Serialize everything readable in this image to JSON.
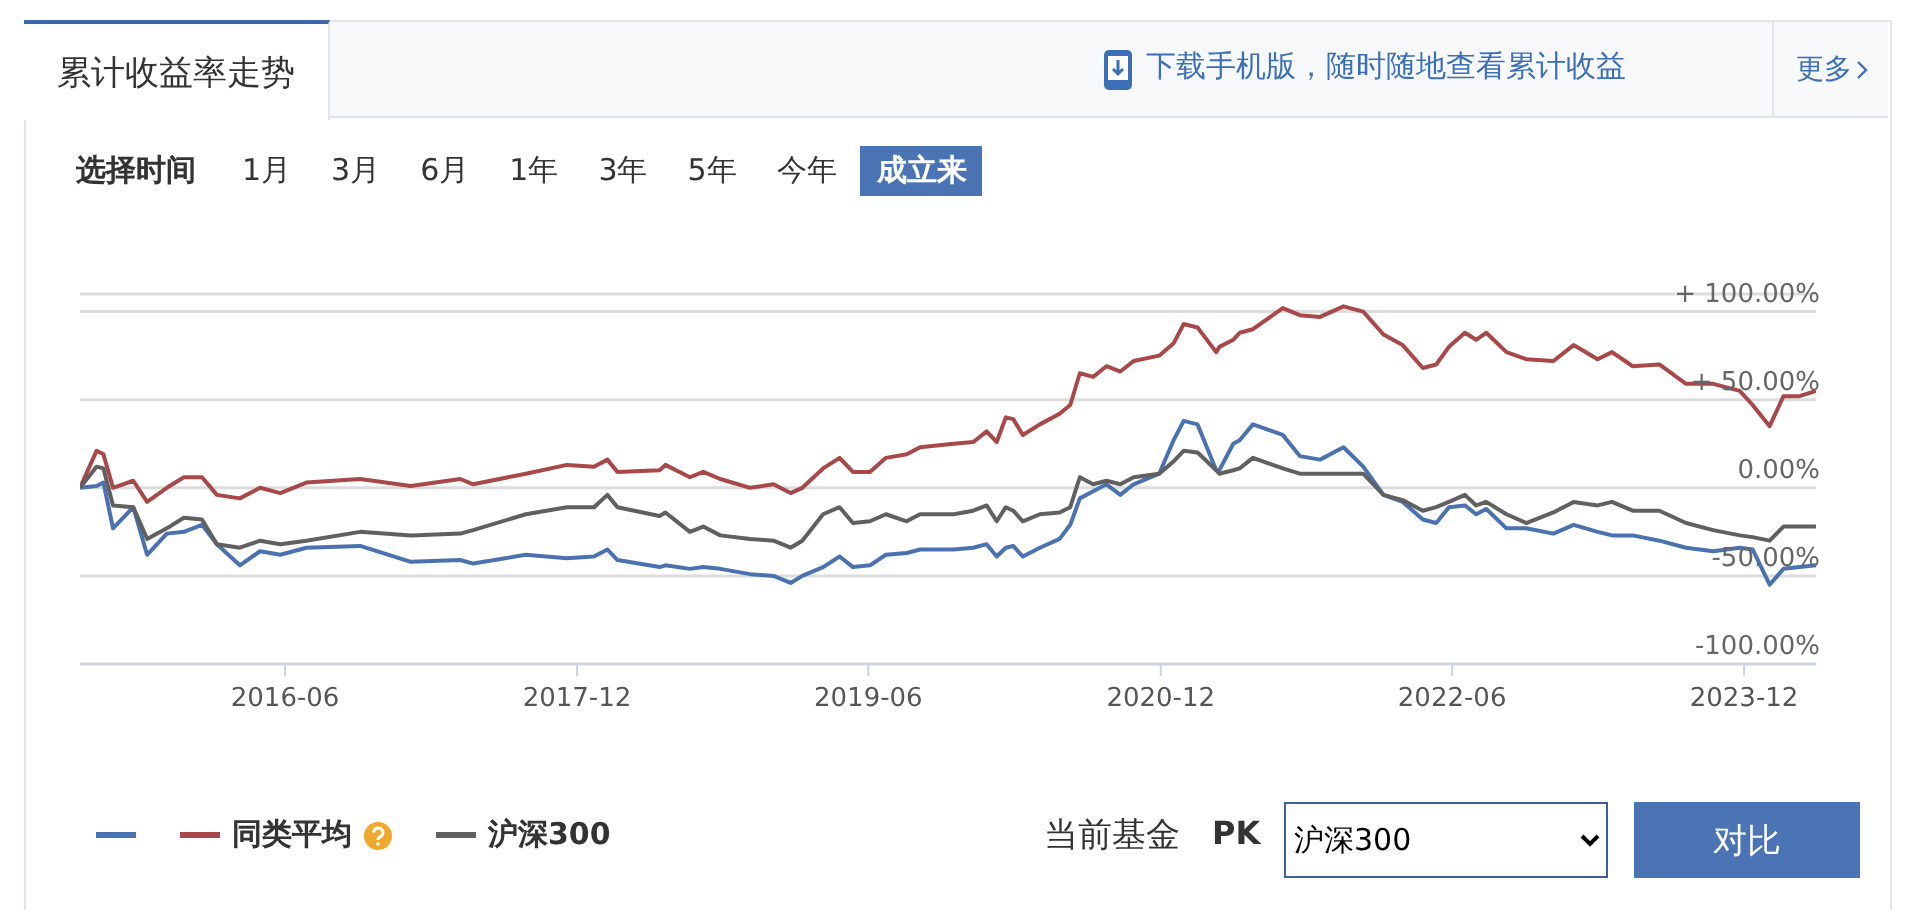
{
  "chart_data": {
    "type": "line",
    "title": "累计收益率走势",
    "annotations": [
      "下载手机版，随时随地查看累计收益",
      "更多",
      "选择时间",
      "1月",
      "3月",
      "6月",
      "1年",
      "3年",
      "5年",
      "今年",
      "成立来",
      "当前基金",
      "PK",
      "沪深300",
      "对比"
    ],
    "x": [
      "2015-05-13",
      "2015-06-13",
      "2015-06-26",
      "2015-07-14",
      "2015-08-21",
      "2015-09-16",
      "2015-10-23",
      "2015-11-24",
      "2015-12-28",
      "2016-01-25",
      "2016-03-08",
      "2016-04-15",
      "2016-05-23",
      "2016-07-11",
      "2016-10-20",
      "2017-01-23",
      "2017-04-26",
      "2017-05-20",
      "2017-08-27",
      "2017-11-12",
      "2018-01-02",
      "2018-01-27",
      "2018-02-15",
      "2018-05-05",
      "2018-05-16",
      "2018-07-01",
      "2018-07-26",
      "2018-08-27",
      "2018-10-22",
      "2018-12-05",
      "2019-01-06",
      "2019-01-28",
      "2019-03-08",
      "2019-04-08",
      "2019-05-03",
      "2019-06-04",
      "2019-07-04",
      "2019-08-12",
      "2019-09-06",
      "2019-11-08",
      "2019-12-15",
      "2020-01-09",
      "2020-01-28",
      "2020-02-14",
      "2020-02-28",
      "2020-03-17",
      "2020-04-18",
      "2020-05-25",
      "2020-06-14",
      "2020-07-02",
      "2020-07-27",
      "2020-08-21",
      "2020-09-16",
      "2020-10-11",
      "2020-11-28",
      "2020-12-25",
      "2021-01-13",
      "2021-02-08",
      "2021-03-15",
      "2021-03-21",
      "2021-04-16",
      "2021-04-28",
      "2021-05-23",
      "2021-07-18",
      "2021-08-19",
      "2021-09-26",
      "2021-11-09",
      "2021-12-16",
      "2022-01-23",
      "2022-02-28",
      "2022-04-07",
      "2022-05-02",
      "2022-05-26",
      "2022-06-25",
      "2022-07-16",
      "2022-08-04",
      "2022-09-11",
      "2022-10-18",
      "2022-12-08",
      "2023-01-15",
      "2023-03-01",
      "2023-03-28",
      "2023-05-06",
      "2023-06-25",
      "2023-08-14",
      "2023-10-04",
      "2023-11-23",
      "2023-12-17",
      "2024-01-18",
      "2024-02-13",
      "2024-03-14",
      "2024-04-14"
    ],
    "series": [
      {
        "color": "#4a72b0",
        "values": [
          0,
          1,
          3,
          -23,
          -11,
          -38,
          -26,
          -25,
          -21,
          -32,
          -44,
          -36,
          -38,
          -34,
          -33,
          -42,
          -41,
          -43,
          -38,
          -40,
          -39,
          -35,
          -41,
          -45,
          -44,
          -46,
          -45,
          -46,
          -49,
          -50,
          -54,
          -50,
          -45,
          -39,
          -45,
          -44,
          -38,
          -37,
          -35,
          -35,
          -34,
          -32,
          -39,
          -34,
          -33,
          -39,
          -34,
          -29,
          -21,
          -6,
          -2,
          2,
          -4,
          2,
          8,
          27,
          38,
          36,
          10,
          10,
          25,
          27,
          36,
          30,
          18,
          16,
          23,
          12,
          -4,
          -8,
          -18,
          -20,
          -11,
          -10,
          -15,
          -12,
          -23,
          -23,
          -26,
          -21,
          -25,
          -27,
          -27,
          -30,
          -34,
          -36,
          -34,
          -35,
          -55,
          -46,
          -45,
          -44
        ]
      },
      {
        "name": "同类平均",
        "color": "#a84848",
        "values": [
          0,
          21,
          19,
          0,
          4,
          -8,
          0,
          6,
          6,
          -4,
          -6,
          0,
          -3,
          3,
          5,
          1,
          5,
          2,
          8,
          13,
          12,
          16,
          9,
          10,
          13,
          6,
          9,
          5,
          0,
          2,
          -3,
          0,
          11,
          17,
          9,
          9,
          17,
          19,
          23,
          25,
          26,
          32,
          26,
          40,
          39,
          30,
          36,
          42,
          47,
          65,
          63,
          69,
          66,
          72,
          75,
          82,
          93,
          91,
          77,
          80,
          84,
          88,
          90,
          102,
          98,
          97,
          103,
          100,
          87,
          81,
          68,
          70,
          80,
          88,
          84,
          88,
          77,
          73,
          72,
          81,
          73,
          77,
          69,
          70,
          59,
          59,
          55,
          47,
          35,
          52,
          52,
          55
        ]
      },
      {
        "name": "沪深300",
        "color": "#606060",
        "values": [
          0,
          12,
          11,
          -10,
          -11,
          -29,
          -23,
          -17,
          -18,
          -32,
          -34,
          -30,
          -32,
          -30,
          -25,
          -27,
          -26,
          -24,
          -15,
          -11,
          -11,
          -4,
          -11,
          -16,
          -14,
          -25,
          -22,
          -27,
          -29,
          -30,
          -34,
          -30,
          -15,
          -11,
          -20,
          -19,
          -15,
          -19,
          -15,
          -15,
          -13,
          -10,
          -19,
          -11,
          -13,
          -19,
          -15,
          -14,
          -11,
          6,
          2,
          4,
          2,
          6,
          8,
          15,
          21,
          20,
          10,
          8,
          10,
          11,
          17,
          11,
          8,
          8,
          8,
          8,
          -4,
          -7,
          -13,
          -11,
          -8,
          -4,
          -10,
          -8,
          -15,
          -20,
          -14,
          -8,
          -10,
          -8,
          -13,
          -13,
          -20,
          -24,
          -27,
          -28,
          -30,
          -22,
          -22,
          -22
        ]
      }
    ],
    "xlim": [
      "2015-05-13",
      "2024-04-14"
    ],
    "xticks": [
      "2016-06",
      "2017-12",
      "2019-06",
      "2020-12",
      "2022-06",
      "2023-12"
    ],
    "ylim": [
      -100,
      110
    ],
    "yticks": [
      {
        "value": -100,
        "label": "-100.00%"
      },
      {
        "value": -50,
        "label": "-50.00%"
      },
      {
        "value": 0,
        "label": "0.00%"
      },
      {
        "value": 50,
        "label": "+ 50.00%"
      },
      {
        "value": 100,
        "label": "+ 100.00%"
      }
    ],
    "grid": "y",
    "legend": "bottom left",
    "marker": "none",
    "line_style": "solid"
  }
}
